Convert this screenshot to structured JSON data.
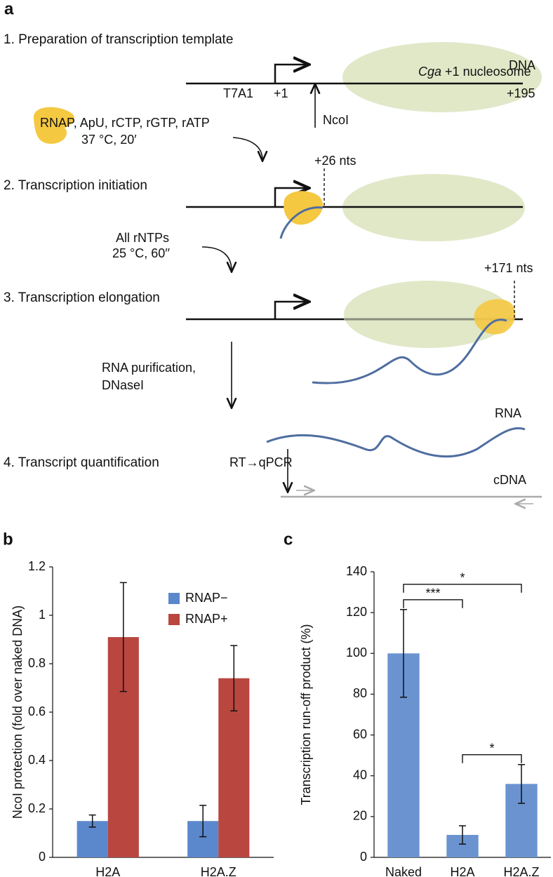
{
  "diagram": {
    "panel_label": "a",
    "steps": [
      "1.  Preparation of transcription template",
      "2.  Transcription initiation",
      "3.  Transcription elongation",
      "4.  Transcript quantification"
    ],
    "dna": "DNA",
    "nucleosome_gene": "Cga",
    "nucleosome": "+1 nucleosome",
    "promoter": "T7A1",
    "start": "+1",
    "end": "+195",
    "site": "NcoI",
    "step1_mix": "RNAP, ApU, rCTP, rGTP, rATP",
    "step1_cond": "37 °C, 20′",
    "step2_pos": "+26 nts",
    "step2_mix": "All rNTPs",
    "step2_cond": "25 °C, 60′′",
    "step3_pos": "+171 nts",
    "purification": "RNA purification,",
    "dnase": "DNaseI",
    "rna": "RNA",
    "rtqpcr": "RT→qPCR",
    "cdna": "cDNA"
  },
  "chart_data": [
    {
      "type": "bar",
      "panel_label": "b",
      "y_label": "NcoI protection (fold over naked DNA)",
      "categories": [
        "H2A",
        "H2A.Z"
      ],
      "series": [
        {
          "name": "RNAP−",
          "color": "#5b87cc",
          "values": [
            0.15,
            0.15
          ],
          "errors": [
            0.025,
            0.065
          ]
        },
        {
          "name": "RNAP+",
          "color": "#b9463f",
          "values": [
            0.91,
            0.74
          ],
          "errors": [
            0.225,
            0.135
          ]
        }
      ],
      "ylim": [
        0,
        1.2
      ],
      "yticks": [
        0,
        0.2,
        0.4,
        0.6,
        0.8,
        1,
        1.2
      ],
      "legend": "upper right"
    },
    {
      "type": "bar",
      "panel_label": "c",
      "y_label": "Transcription run-off product (%)",
      "categories": [
        "Naked",
        "H2A",
        "H2A.Z"
      ],
      "values": [
        100,
        11,
        36
      ],
      "errors": [
        21.5,
        4.5,
        9.5
      ],
      "color": "#6a93d0",
      "ylim": [
        0,
        140
      ],
      "yticks": [
        0,
        20,
        40,
        60,
        80,
        100,
        120,
        140
      ],
      "significance": [
        {
          "between": [
            "Naked",
            "H2A"
          ],
          "label": "***"
        },
        {
          "between": [
            "Naked",
            "H2A.Z"
          ],
          "label": "*"
        },
        {
          "between": [
            "H2A",
            "H2A.Z"
          ],
          "label": "*"
        }
      ]
    }
  ]
}
